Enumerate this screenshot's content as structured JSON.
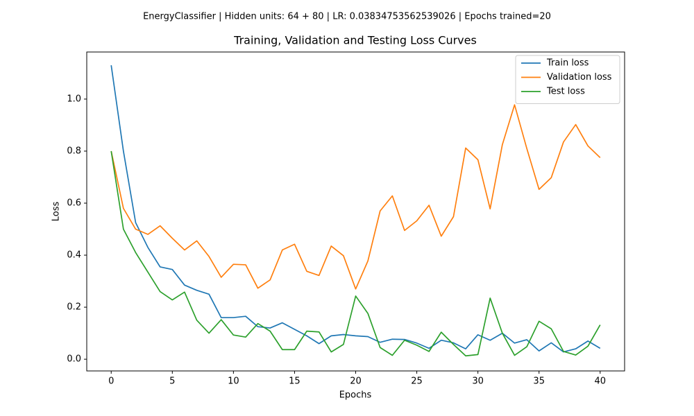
{
  "chart_data": {
    "type": "line",
    "suptitle": "EnergyClassifier | Hidden units: 64 + 80 | LR: 0.03834753562539026 | Epochs trained=20",
    "title": "Training, Validation and Testing Loss Curves",
    "xlabel": "Epochs",
    "ylabel": "Loss",
    "x": [
      0,
      1,
      2,
      3,
      4,
      5,
      6,
      7,
      8,
      9,
      10,
      11,
      12,
      13,
      14,
      15,
      16,
      17,
      18,
      19,
      20,
      21,
      22,
      23,
      24,
      25,
      26,
      27,
      28,
      29,
      30,
      31,
      32,
      33,
      34,
      35,
      36,
      37,
      38,
      39,
      40
    ],
    "series": [
      {
        "name": "Train loss",
        "color": "#1f77b4",
        "values": [
          1.13,
          0.8,
          0.525,
          0.43,
          0.355,
          0.345,
          0.285,
          0.265,
          0.25,
          0.16,
          0.16,
          0.165,
          0.125,
          0.12,
          0.14,
          0.115,
          0.09,
          0.06,
          0.09,
          0.095,
          0.09,
          0.087,
          0.065,
          0.077,
          0.076,
          0.062,
          0.042,
          0.073,
          0.063,
          0.04,
          0.094,
          0.073,
          0.1,
          0.062,
          0.075,
          0.032,
          0.063,
          0.028,
          0.04,
          0.07,
          0.042
        ]
      },
      {
        "name": "Validation loss",
        "color": "#ff7f0e",
        "values": [
          0.8,
          0.58,
          0.5,
          0.48,
          0.513,
          0.465,
          0.42,
          0.455,
          0.395,
          0.315,
          0.365,
          0.363,
          0.273,
          0.305,
          0.42,
          0.442,
          0.338,
          0.322,
          0.435,
          0.398,
          0.27,
          0.378,
          0.57,
          0.628,
          0.495,
          0.532,
          0.592,
          0.473,
          0.548,
          0.812,
          0.767,
          0.578,
          0.825,
          0.978,
          0.81,
          0.653,
          0.698,
          0.835,
          0.902,
          0.82,
          0.775
        ]
      },
      {
        "name": "Test loss",
        "color": "#2ca02c",
        "values": [
          0.8,
          0.5,
          0.41,
          0.335,
          0.26,
          0.228,
          0.258,
          0.15,
          0.1,
          0.152,
          0.093,
          0.085,
          0.137,
          0.108,
          0.037,
          0.037,
          0.108,
          0.105,
          0.028,
          0.057,
          0.243,
          0.176,
          0.045,
          0.015,
          0.073,
          0.054,
          0.03,
          0.104,
          0.057,
          0.013,
          0.018,
          0.235,
          0.1,
          0.015,
          0.048,
          0.146,
          0.117,
          0.03,
          0.016,
          0.05,
          0.132
        ]
      }
    ],
    "xlim": [
      -2,
      42
    ],
    "xticks": [
      0,
      5,
      10,
      15,
      20,
      25,
      30,
      35,
      40
    ],
    "ylim": [
      -0.045,
      1.181
    ],
    "yticks": [
      {
        "value": 0,
        "label": "0.0"
      },
      0.2,
      0.4,
      0.6,
      0.8,
      {
        "value": 1,
        "label": "1.0"
      }
    ],
    "legend": "upper right"
  }
}
